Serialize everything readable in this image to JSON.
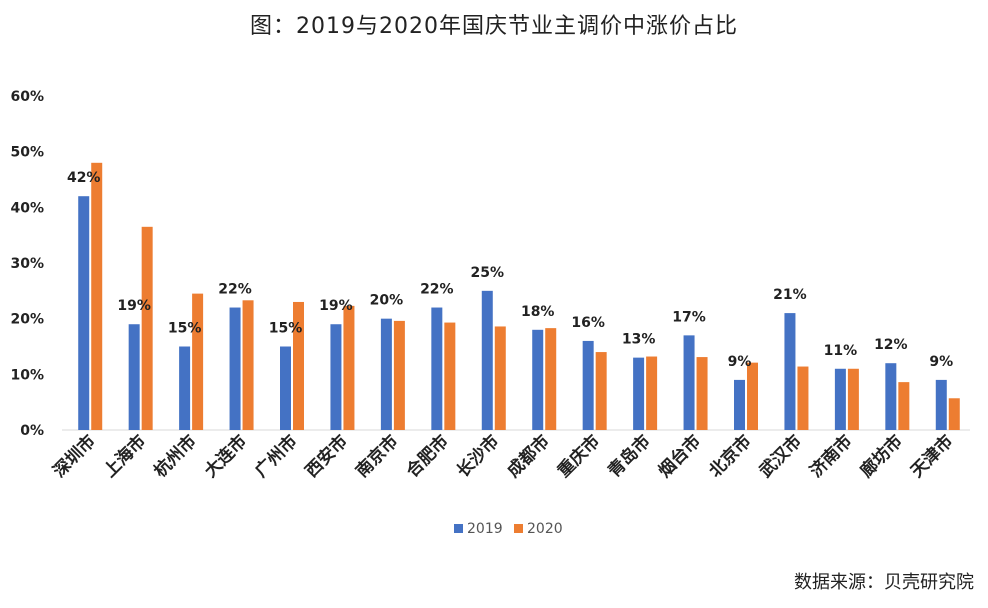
{
  "chart_data": {
    "type": "bar",
    "title": "图：2019与2020年国庆节业主调价中涨价占比",
    "xlabel": "",
    "ylabel": "",
    "ylim": [
      0,
      60
    ],
    "y_ticks": [
      "0%",
      "10%",
      "20%",
      "30%",
      "40%",
      "50%",
      "60%"
    ],
    "grid": false,
    "legend_position": "bottom",
    "categories": [
      "深圳市",
      "上海市",
      "杭州市",
      "大连市",
      "广州市",
      "西安市",
      "南京市",
      "合肥市",
      "长沙市",
      "成都市",
      "重庆市",
      "青岛市",
      "烟台市",
      "北京市",
      "武汉市",
      "济南市",
      "廊坊市",
      "天津市"
    ],
    "series": [
      {
        "name": "2019",
        "color": "#4472C4",
        "values": [
          42,
          19,
          15,
          22,
          15,
          19,
          20,
          22,
          25,
          18,
          16,
          13,
          17,
          9,
          21,
          11,
          12,
          9
        ]
      },
      {
        "name": "2020",
        "color": "#ED7D31",
        "values": [
          48,
          36.5,
          24.5,
          23.3,
          23,
          22.3,
          19.6,
          19.3,
          18.6,
          18.3,
          14,
          13.2,
          13.1,
          12.1,
          11.4,
          11,
          8.6,
          5.7
        ]
      }
    ],
    "data_labels": [
      "42%",
      "19%",
      "15%",
      "22%",
      "15%",
      "19%",
      "20%",
      "22%",
      "25%",
      "18%",
      "16%",
      "13%",
      "17%",
      "9%",
      "21%",
      "11%",
      "12%",
      "9%"
    ]
  },
  "source": "数据来源：贝壳研究院"
}
